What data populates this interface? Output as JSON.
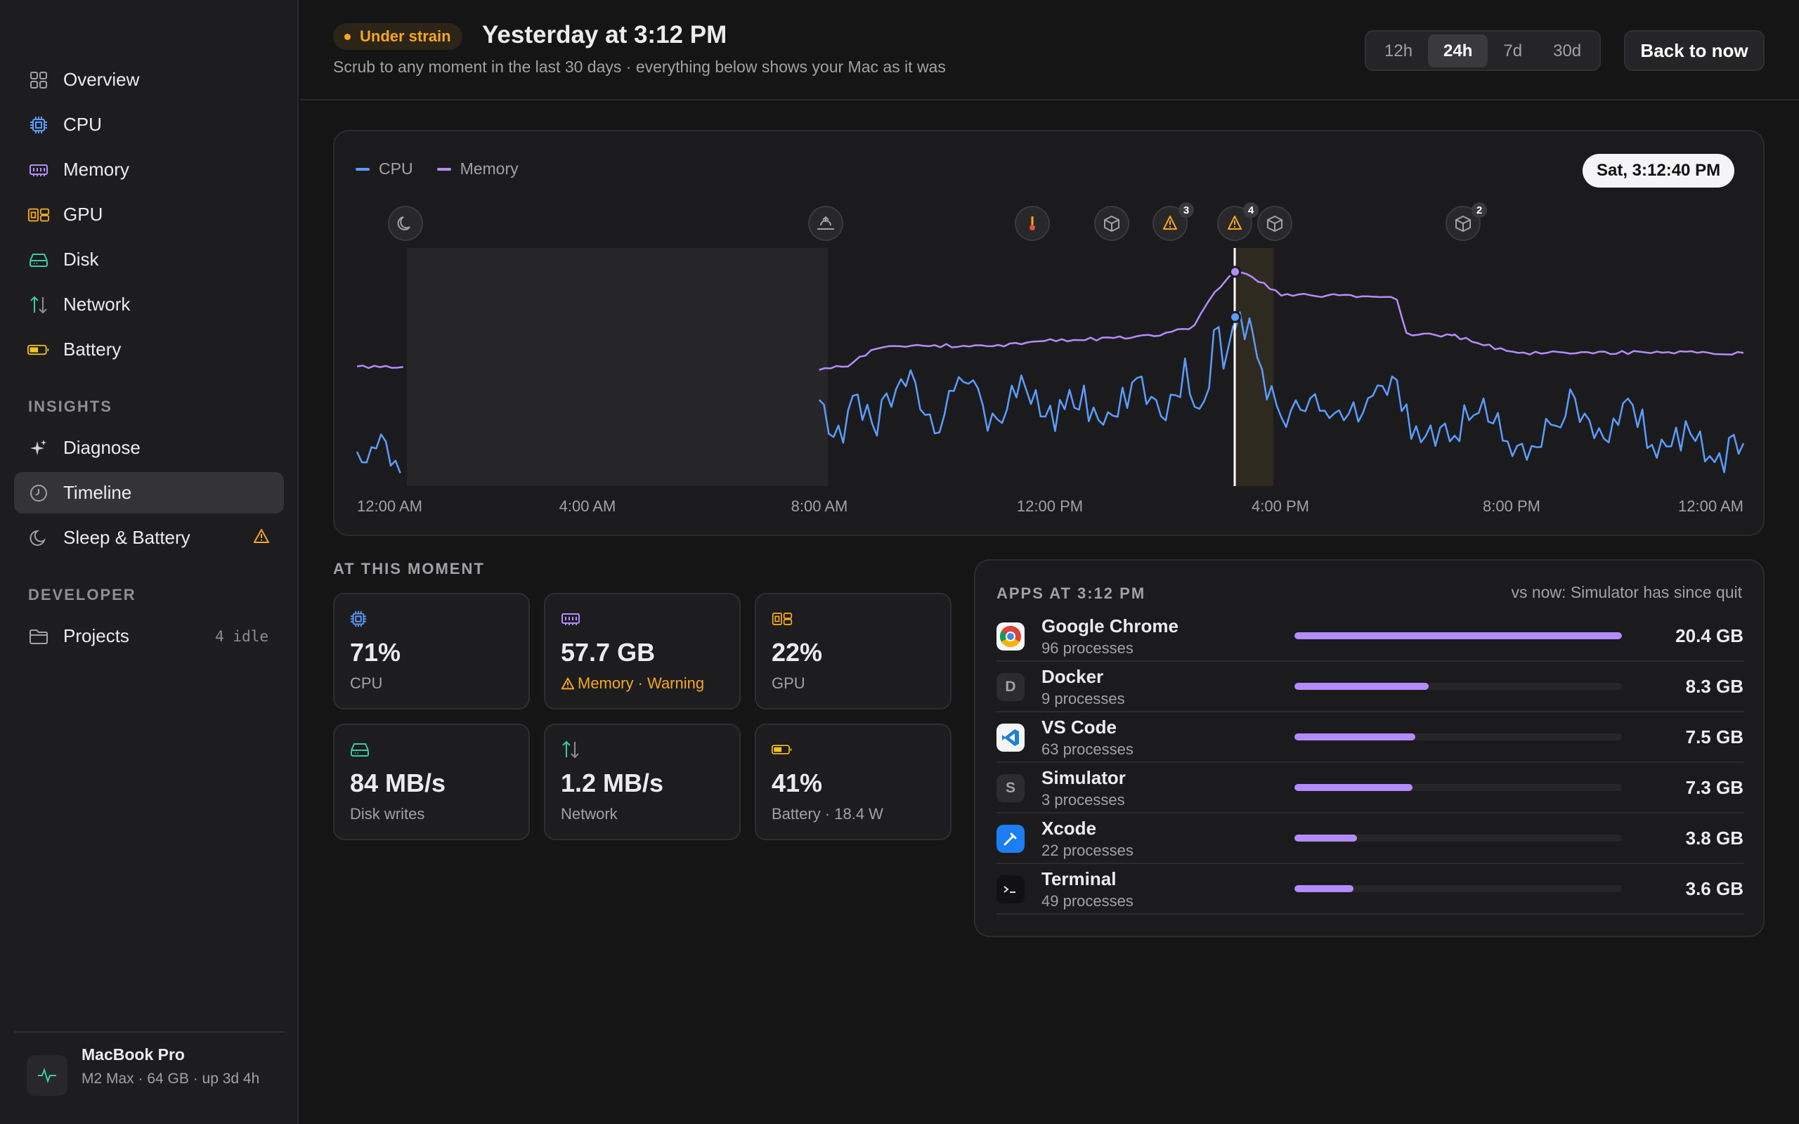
{
  "sidebar": {
    "nav": [
      {
        "label": "Overview",
        "icon": "overview-grid-icon"
      },
      {
        "label": "CPU",
        "icon": "cpu-chip-icon"
      },
      {
        "label": "Memory",
        "icon": "memory-module-icon"
      },
      {
        "label": "GPU",
        "icon": "gpu-icon"
      },
      {
        "label": "Disk",
        "icon": "disk-drive-icon"
      },
      {
        "label": "Network",
        "icon": "network-arrows-icon"
      },
      {
        "label": "Battery",
        "icon": "battery-icon"
      }
    ],
    "insights_label": "INSIGHTS",
    "insights": [
      {
        "label": "Diagnose",
        "icon": "sparkle-icon"
      },
      {
        "label": "Timeline",
        "icon": "clock-icon",
        "active": true
      },
      {
        "label": "Sleep & Battery",
        "icon": "moon-icon",
        "badge_icon": "warning-icon"
      }
    ],
    "developer_label": "DEVELOPER",
    "developer": [
      {
        "label": "Projects",
        "icon": "folder-icon",
        "suffix": "4 idle"
      }
    ],
    "device": {
      "title": "MacBook Pro",
      "subtitle": "M2 Max · 64 GB · up 3d 4h",
      "icon": "activity-pulse-icon"
    }
  },
  "header": {
    "badge": "Under strain",
    "title": "Yesterday at 3:12 PM",
    "subtitle": "Scrub to any moment in the last 30 days · everything below shows your Mac as it was",
    "ranges": [
      "12h",
      "24h",
      "7d",
      "30d"
    ],
    "active_range": "24h",
    "back_button": "Back to now"
  },
  "timeline": {
    "time_chip": "Sat, 3:12:40 PM",
    "legend": [
      {
        "name": "CPU",
        "color": "#5b9cff"
      },
      {
        "name": "Memory",
        "color": "#b48cff"
      }
    ],
    "event_markers": [
      {
        "icon": "moon-icon"
      },
      {
        "icon": "wake-sunrise-icon"
      },
      {
        "icon": "thermometer-icon"
      },
      {
        "icon": "package-box-icon"
      },
      {
        "icon": "warning-icon",
        "count": "3"
      },
      {
        "icon": "warning-icon",
        "count": "4"
      },
      {
        "icon": "package-box-icon"
      },
      {
        "icon": "package-box-icon",
        "count": "2"
      }
    ]
  },
  "chart_data": {
    "type": "line",
    "x_labels": [
      "12:00 AM",
      "4:00 AM",
      "8:00 AM",
      "12:00 PM",
      "4:00 PM",
      "8:00 PM",
      "12:00 AM"
    ],
    "series": [
      {
        "name": "Memory",
        "color": "#b48cff",
        "note": "no data while asleep (approx. 12:50 AM - 8:00 AM)"
      },
      {
        "name": "CPU",
        "color": "#5b9cff"
      }
    ],
    "ylim": [
      0,
      100
    ],
    "selected_time": "3:12 PM",
    "selected_values": {
      "CPU": 71,
      "Memory": 90
    },
    "memory_points": [
      [
        "00:00",
        50
      ],
      [
        "00:50",
        50
      ],
      [
        "08:00",
        49
      ],
      [
        "08:30",
        51
      ],
      [
        "09:00",
        58
      ],
      [
        "10:00",
        59
      ],
      [
        "11:00",
        59
      ],
      [
        "12:00",
        61
      ],
      [
        "13:00",
        62
      ],
      [
        "14:00",
        64
      ],
      [
        "14:30",
        67
      ],
      [
        "14:45",
        78
      ],
      [
        "15:00",
        85
      ],
      [
        "15:12",
        90
      ],
      [
        "15:30",
        88
      ],
      [
        "16:00",
        80
      ],
      [
        "17:00",
        80
      ],
      [
        "18:00",
        79
      ],
      [
        "18:10",
        64
      ],
      [
        "19:00",
        63
      ],
      [
        "20:00",
        56
      ],
      [
        "21:00",
        56
      ],
      [
        "22:00",
        56
      ],
      [
        "23:00",
        56
      ],
      [
        "24:00",
        56
      ]
    ],
    "cpu_points": [
      [
        "00:00",
        10
      ],
      [
        "00:20",
        20
      ],
      [
        "00:50",
        8
      ],
      [
        "08:00",
        30
      ],
      [
        "08:20",
        20
      ],
      [
        "08:40",
        36
      ],
      [
        "09:00",
        28
      ],
      [
        "09:30",
        45
      ],
      [
        "10:00",
        26
      ],
      [
        "10:30",
        45
      ],
      [
        "11:00",
        25
      ],
      [
        "11:30",
        44
      ],
      [
        "12:00",
        28
      ],
      [
        "12:30",
        38
      ],
      [
        "13:00",
        25
      ],
      [
        "13:30",
        45
      ],
      [
        "14:00",
        33
      ],
      [
        "14:20",
        48
      ],
      [
        "14:40",
        30
      ],
      [
        "14:50",
        66
      ],
      [
        "15:00",
        56
      ],
      [
        "15:12",
        71
      ],
      [
        "15:30",
        62
      ],
      [
        "15:45",
        40
      ],
      [
        "16:00",
        30
      ],
      [
        "16:30",
        40
      ],
      [
        "17:00",
        28
      ],
      [
        "17:30",
        35
      ],
      [
        "18:00",
        41
      ],
      [
        "18:20",
        20
      ],
      [
        "19:00",
        23
      ],
      [
        "19:30",
        36
      ],
      [
        "20:00",
        15
      ],
      [
        "20:30",
        20
      ],
      [
        "21:00",
        35
      ],
      [
        "21:30",
        20
      ],
      [
        "22:00",
        36
      ],
      [
        "22:30",
        16
      ],
      [
        "23:00",
        22
      ],
      [
        "23:30",
        10
      ],
      [
        "24:00",
        18
      ]
    ]
  },
  "moment": {
    "label": "AT THIS MOMENT",
    "metrics": [
      {
        "value": "71%",
        "label": "CPU",
        "icon": "cpu-chip-icon"
      },
      {
        "value": "57.7 GB",
        "label": "Memory · Warning",
        "icon": "memory-module-icon",
        "warn": true
      },
      {
        "value": "22%",
        "label": "GPU",
        "icon": "gpu-icon"
      },
      {
        "value": "84 MB/s",
        "label": "Disk writes",
        "icon": "disk-drive-icon"
      },
      {
        "value": "1.2 MB/s",
        "label": "Network",
        "icon": "network-arrows-icon"
      },
      {
        "value": "41%",
        "label": "Battery · 18.4 W",
        "icon": "battery-icon"
      }
    ]
  },
  "apps": {
    "title": "APPS AT 3:12 PM",
    "note": "vs now: Simulator has since quit",
    "rows": [
      {
        "name": "Google Chrome",
        "procs": "96 processes",
        "size": "20.4 GB",
        "fraction": 1.0,
        "icon": "chrome-icon"
      },
      {
        "name": "Docker",
        "procs": "9 processes",
        "size": "8.3 GB",
        "fraction": 0.41,
        "icon_letter": "D"
      },
      {
        "name": "VS Code",
        "procs": "63 processes",
        "size": "7.5 GB",
        "fraction": 0.37,
        "icon": "vscode-icon"
      },
      {
        "name": "Simulator",
        "procs": "3 processes",
        "size": "7.3 GB",
        "fraction": 0.36,
        "icon_letter": "S"
      },
      {
        "name": "Xcode",
        "procs": "22 processes",
        "size": "3.8 GB",
        "fraction": 0.19,
        "icon": "xcode-hammer-icon"
      },
      {
        "name": "Terminal",
        "procs": "49 processes",
        "size": "3.6 GB",
        "fraction": 0.18,
        "icon": "terminal-icon"
      }
    ]
  }
}
